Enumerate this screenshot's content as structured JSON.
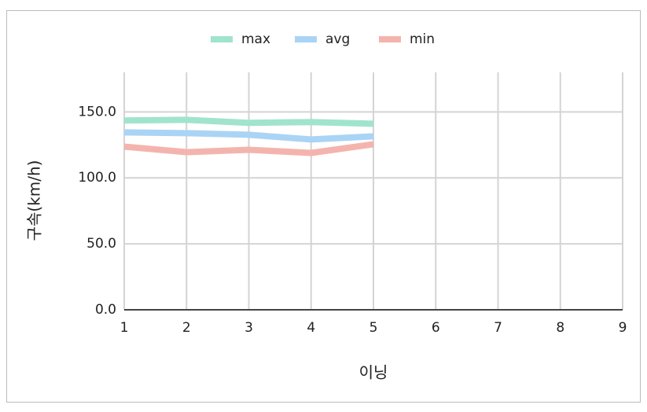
{
  "chart_data": {
    "type": "line",
    "x_label": "이닝",
    "y_label": "구속(km/h)",
    "x": [
      1,
      2,
      3,
      4,
      5
    ],
    "series": [
      {
        "name": "max",
        "color": "#a0e4cd",
        "values": [
          143.5,
          144,
          141.7,
          142.3,
          141
        ]
      },
      {
        "name": "avg",
        "color": "#aad4f5",
        "values": [
          134.5,
          133.9,
          132.7,
          129.1,
          131.5
        ]
      },
      {
        "name": "min",
        "color": "#f4b4ae",
        "values": [
          123.7,
          119.5,
          121.3,
          118.9,
          125.5
        ]
      }
    ],
    "xlim": [
      1,
      9
    ],
    "xticks": [
      1,
      2,
      3,
      4,
      5,
      6,
      7,
      8,
      9
    ],
    "ylim": [
      0,
      180
    ],
    "yticks": [
      {
        "value": 0,
        "label": "0.0"
      },
      {
        "value": 50,
        "label": "50.0"
      },
      {
        "value": 100,
        "label": "100.0"
      },
      {
        "value": 150,
        "label": "150.0"
      }
    ],
    "grid": true,
    "legend": "top"
  }
}
